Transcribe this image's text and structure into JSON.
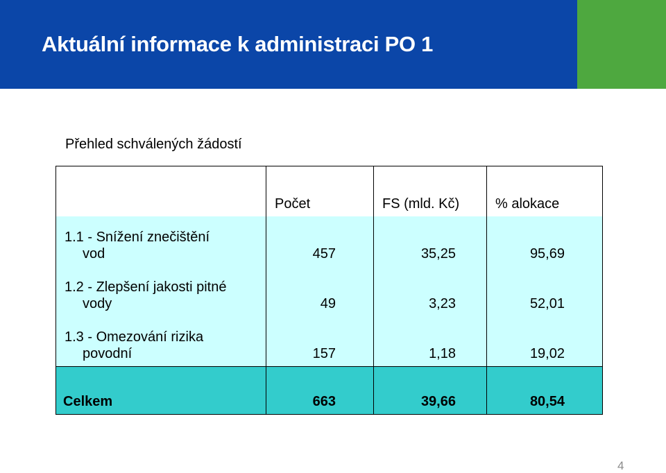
{
  "header": {
    "title": "Aktuální informace k administraci PO 1",
    "header_color": "#0b46a8",
    "accent_color": "#4ea83f"
  },
  "subtitle": "Přehled schválených žádostí",
  "table": {
    "columns": [
      "",
      "Počet",
      "FS (mld. Kč)",
      "% alokace"
    ],
    "rows": [
      {
        "label_line1": "1.1 - Snížení znečištění",
        "label_line2": "vod",
        "count": "457",
        "fs": "35,25",
        "alokace": "95,69"
      },
      {
        "label_line1": "1.2 - Zlepšení jakosti pitné",
        "label_line2": "vody",
        "count": "49",
        "fs": "3,23",
        "alokace": "52,01"
      },
      {
        "label_line1": "1.3 - Omezování rizika",
        "label_line2": "povodní",
        "count": "157",
        "fs": "1,18",
        "alokace": "19,02"
      }
    ],
    "total": {
      "label": "Celkem",
      "count": "663",
      "fs": "39,66",
      "alokace": "80,54"
    },
    "row_color": "#ccffff",
    "total_color": "#33cccc"
  },
  "page_number": "4"
}
